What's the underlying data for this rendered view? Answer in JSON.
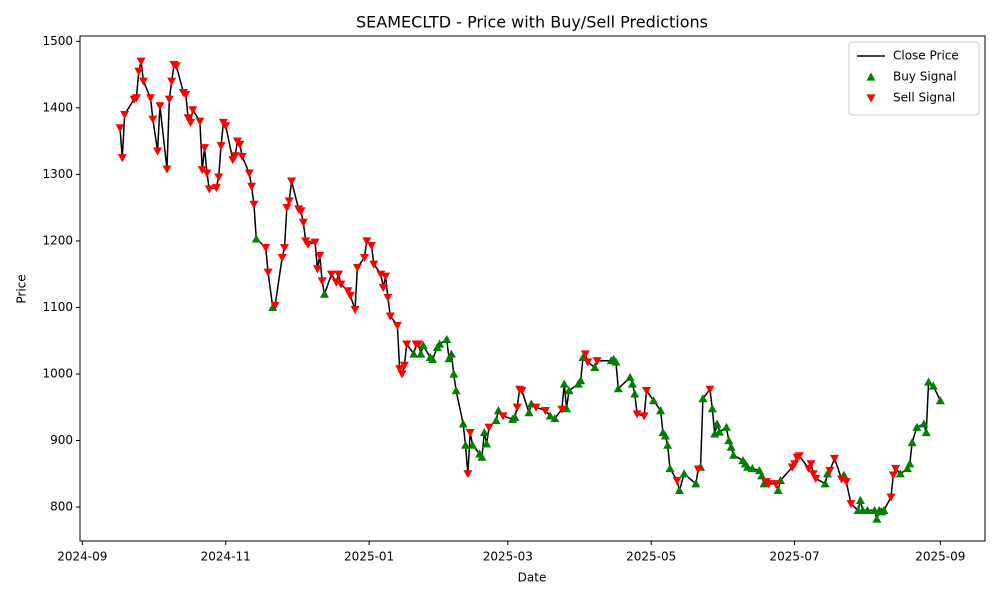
{
  "chart_data": {
    "type": "line",
    "title": "SEAMECLTD - Price with Buy/Sell Predictions",
    "x_label": "Date",
    "y_label": "Price",
    "xlim": [
      "2024-08-31",
      "2025-09-20"
    ],
    "xticks": [
      {
        "value": "2024-09-01",
        "label": "2024-09"
      },
      {
        "value": "2024-11-01",
        "label": "2024-11"
      },
      {
        "value": "2025-01-01",
        "label": "2025-01"
      },
      {
        "value": "2025-03-01",
        "label": "2025-03"
      },
      {
        "value": "2025-05-01",
        "label": "2025-05"
      },
      {
        "value": "2025-07-01",
        "label": "2025-07"
      },
      {
        "value": "2025-09-01",
        "label": "2025-09"
      }
    ],
    "ylim": [
      749,
      1508
    ],
    "yticks": [
      800,
      900,
      1000,
      1100,
      1200,
      1300,
      1400,
      1500
    ],
    "grid": false,
    "legend": "upper right",
    "series": [
      {
        "name": "Close Price",
        "type": "line",
        "color": "#000000",
        "x": [
          "2024-09-17",
          "2024-09-18",
          "2024-09-19",
          "2024-09-23",
          "2024-09-24",
          "2024-09-25",
          "2024-09-26",
          "2024-09-27",
          "2024-09-30",
          "2024-10-01",
          "2024-10-03",
          "2024-10-04",
          "2024-10-07",
          "2024-10-08",
          "2024-10-09",
          "2024-10-10",
          "2024-10-11",
          "2024-10-14",
          "2024-10-15",
          "2024-10-16",
          "2024-10-17",
          "2024-10-18",
          "2024-10-21",
          "2024-10-22",
          "2024-10-23",
          "2024-10-24",
          "2024-10-25",
          "2024-10-28",
          "2024-10-29",
          "2024-10-30",
          "2024-10-31",
          "2024-11-01",
          "2024-11-04",
          "2024-11-05",
          "2024-11-06",
          "2024-11-07",
          "2024-11-08",
          "2024-11-11",
          "2024-11-12",
          "2024-11-13",
          "2024-11-14",
          "2024-11-18",
          "2024-11-19",
          "2024-11-21",
          "2024-11-22",
          "2024-11-25",
          "2024-11-26",
          "2024-11-27",
          "2024-11-28",
          "2024-11-29",
          "2024-12-02",
          "2024-12-03",
          "2024-12-04",
          "2024-12-05",
          "2024-12-06",
          "2024-12-09",
          "2024-12-10",
          "2024-12-11",
          "2024-12-12",
          "2024-12-13",
          "2024-12-16",
          "2024-12-18",
          "2024-12-19",
          "2024-12-20",
          "2024-12-23",
          "2024-12-24",
          "2024-12-26",
          "2024-12-27",
          "2024-12-30",
          "2024-12-31",
          "2025-01-02",
          "2025-01-03",
          "2025-01-06",
          "2025-01-07",
          "2025-01-08",
          "2025-01-09",
          "2025-01-10",
          "2025-01-13",
          "2025-01-14",
          "2025-01-15",
          "2025-01-16",
          "2025-01-17",
          "2025-01-20",
          "2025-01-21",
          "2025-01-22",
          "2025-01-23",
          "2025-01-24",
          "2025-01-27",
          "2025-01-28",
          "2025-01-30",
          "2025-01-31",
          "2025-02-03",
          "2025-02-04",
          "2025-02-05",
          "2025-02-06",
          "2025-02-07",
          "2025-02-10",
          "2025-02-11",
          "2025-02-12",
          "2025-02-13",
          "2025-02-14",
          "2025-02-17",
          "2025-02-18",
          "2025-02-19",
          "2025-02-20",
          "2025-02-21",
          "2025-02-24",
          "2025-02-25",
          "2025-02-27",
          "2025-03-03",
          "2025-03-04",
          "2025-03-05",
          "2025-03-06",
          "2025-03-07",
          "2025-03-10",
          "2025-03-11",
          "2025-03-13",
          "2025-03-17",
          "2025-03-19",
          "2025-03-21",
          "2025-03-24",
          "2025-03-25",
          "2025-03-26",
          "2025-03-27",
          "2025-03-31",
          "2025-04-01",
          "2025-04-02",
          "2025-04-03",
          "2025-04-04",
          "2025-04-07",
          "2025-04-08",
          "2025-04-14",
          "2025-04-15",
          "2025-04-16",
          "2025-04-17",
          "2025-04-22",
          "2025-04-23",
          "2025-04-24",
          "2025-04-25",
          "2025-04-28",
          "2025-04-29",
          "2025-05-02",
          "2025-05-05",
          "2025-05-06",
          "2025-05-07",
          "2025-05-08",
          "2025-05-09",
          "2025-05-12",
          "2025-05-13",
          "2025-05-15",
          "2025-05-20",
          "2025-05-21",
          "2025-05-22",
          "2025-05-23",
          "2025-05-26",
          "2025-05-27",
          "2025-05-28",
          "2025-05-29",
          "2025-05-30",
          "2025-06-02",
          "2025-06-03",
          "2025-06-04",
          "2025-06-05",
          "2025-06-09",
          "2025-06-10",
          "2025-06-11",
          "2025-06-13",
          "2025-06-16",
          "2025-06-17",
          "2025-06-18",
          "2025-06-19",
          "2025-06-20",
          "2025-06-23",
          "2025-06-24",
          "2025-06-25",
          "2025-06-30",
          "2025-07-01",
          "2025-07-02",
          "2025-07-03",
          "2025-07-07",
          "2025-07-08",
          "2025-07-09",
          "2025-07-10",
          "2025-07-14",
          "2025-07-15",
          "2025-07-16",
          "2025-07-18",
          "2025-07-21",
          "2025-07-22",
          "2025-07-23",
          "2025-07-25",
          "2025-07-28",
          "2025-07-29",
          "2025-07-30",
          "2025-08-01",
          "2025-08-04",
          "2025-08-05",
          "2025-08-06",
          "2025-08-07",
          "2025-08-08",
          "2025-08-11",
          "2025-08-12",
          "2025-08-13",
          "2025-08-15",
          "2025-08-18",
          "2025-08-19",
          "2025-08-20",
          "2025-08-22",
          "2025-08-25",
          "2025-08-26",
          "2025-08-27",
          "2025-08-29",
          "2025-09-01"
        ],
        "values": [
          1370,
          1325,
          1390,
          1413,
          1415,
          1455,
          1470,
          1440,
          1415,
          1383,
          1335,
          1403,
          1308,
          1413,
          1440,
          1465,
          1463,
          1423,
          1420,
          1385,
          1378,
          1397,
          1380,
          1307,
          1340,
          1302,
          1278,
          1280,
          1296,
          1343,
          1378,
          1373,
          1322,
          1328,
          1350,
          1345,
          1327,
          1302,
          1282,
          1255,
          1203,
          1190,
          1153,
          1100,
          1103,
          1175,
          1190,
          1250,
          1260,
          1290,
          1248,
          1245,
          1228,
          1200,
          1195,
          1198,
          1158,
          1178,
          1140,
          1120,
          1150,
          1138,
          1150,
          1135,
          1125,
          1118,
          1097,
          1160,
          1175,
          1200,
          1193,
          1165,
          1150,
          1130,
          1147,
          1115,
          1087,
          1073,
          1008,
          1000,
          1013,
          1045,
          1030,
          1045,
          1045,
          1030,
          1043,
          1025,
          1022,
          1040,
          1045,
          1052,
          1023,
          1030,
          1000,
          975,
          925,
          893,
          850,
          912,
          893,
          880,
          875,
          912,
          895,
          920,
          930,
          945,
          937,
          932,
          935,
          950,
          977,
          975,
          942,
          955,
          950,
          945,
          937,
          933,
          947,
          985,
          948,
          975,
          985,
          990,
          1025,
          1030,
          1018,
          1010,
          1020,
          1020,
          1022,
          1018,
          978,
          995,
          985,
          970,
          940,
          937,
          975,
          960,
          945,
          912,
          907,
          893,
          858,
          840,
          825,
          850,
          835,
          857,
          860,
          963,
          977,
          948,
          910,
          925,
          913,
          920,
          900,
          890,
          878,
          870,
          865,
          860,
          858,
          855,
          847,
          835,
          838,
          835,
          835,
          825,
          840,
          860,
          865,
          875,
          877,
          858,
          865,
          850,
          843,
          835,
          850,
          855,
          873,
          842,
          848,
          838,
          805,
          795,
          810,
          795,
          795,
          795,
          782,
          795,
          793,
          795,
          815,
          848,
          858,
          850,
          858,
          865,
          897,
          920,
          925,
          912,
          988,
          982,
          960
        ]
      },
      {
        "name": "Buy Signal",
        "type": "scatter",
        "marker": "triangle-up",
        "color": "#008000",
        "x": [
          "2024-11-14",
          "2024-11-21",
          "2024-12-13",
          "2025-01-20",
          "2025-01-23",
          "2025-01-24",
          "2025-01-27",
          "2025-01-28",
          "2025-01-30",
          "2025-01-31",
          "2025-02-03",
          "2025-02-04",
          "2025-02-05",
          "2025-02-06",
          "2025-02-07",
          "2025-02-10",
          "2025-02-11",
          "2025-02-14",
          "2025-02-17",
          "2025-02-18",
          "2025-02-19",
          "2025-02-20",
          "2025-02-24",
          "2025-02-25",
          "2025-03-03",
          "2025-03-04",
          "2025-03-10",
          "2025-03-11",
          "2025-03-19",
          "2025-03-21",
          "2025-03-25",
          "2025-03-26",
          "2025-03-27",
          "2025-03-31",
          "2025-04-01",
          "2025-04-02",
          "2025-04-07",
          "2025-04-14",
          "2025-04-15",
          "2025-04-16",
          "2025-04-17",
          "2025-04-22",
          "2025-04-23",
          "2025-04-24",
          "2025-05-02",
          "2025-05-05",
          "2025-05-06",
          "2025-05-07",
          "2025-05-08",
          "2025-05-09",
          "2025-05-13",
          "2025-05-15",
          "2025-05-20",
          "2025-05-22",
          "2025-05-23",
          "2025-05-27",
          "2025-05-28",
          "2025-05-29",
          "2025-05-30",
          "2025-06-02",
          "2025-06-03",
          "2025-06-04",
          "2025-06-05",
          "2025-06-09",
          "2025-06-10",
          "2025-06-11",
          "2025-06-13",
          "2025-06-16",
          "2025-06-17",
          "2025-06-18",
          "2025-06-24",
          "2025-06-25",
          "2025-07-14",
          "2025-07-15",
          "2025-07-22",
          "2025-07-28",
          "2025-07-29",
          "2025-07-30",
          "2025-08-01",
          "2025-08-04",
          "2025-08-05",
          "2025-08-06",
          "2025-08-07",
          "2025-08-08",
          "2025-08-15",
          "2025-08-18",
          "2025-08-19",
          "2025-08-20",
          "2025-08-22",
          "2025-08-25",
          "2025-08-26",
          "2025-08-27",
          "2025-08-29",
          "2025-09-01"
        ],
        "values": [
          1203,
          1100,
          1120,
          1030,
          1030,
          1043,
          1025,
          1022,
          1040,
          1045,
          1052,
          1023,
          1030,
          1000,
          975,
          925,
          893,
          893,
          880,
          875,
          912,
          895,
          930,
          945,
          932,
          935,
          942,
          955,
          937,
          933,
          985,
          948,
          975,
          985,
          990,
          1025,
          1010,
          1020,
          1022,
          1018,
          978,
          995,
          985,
          970,
          960,
          945,
          912,
          907,
          893,
          858,
          825,
          850,
          835,
          860,
          963,
          948,
          910,
          925,
          913,
          920,
          900,
          890,
          878,
          870,
          865,
          860,
          858,
          855,
          847,
          835,
          825,
          840,
          835,
          850,
          848,
          795,
          810,
          795,
          795,
          795,
          782,
          795,
          793,
          795,
          850,
          858,
          865,
          897,
          920,
          925,
          912,
          988,
          982,
          960
        ]
      },
      {
        "name": "Sell Signal",
        "type": "scatter",
        "marker": "triangle-down",
        "color": "#ff0000",
        "x": [
          "2024-09-17",
          "2024-09-18",
          "2024-09-19",
          "2024-09-23",
          "2024-09-24",
          "2024-09-25",
          "2024-09-26",
          "2024-09-27",
          "2024-09-30",
          "2024-10-01",
          "2024-10-03",
          "2024-10-04",
          "2024-10-07",
          "2024-10-08",
          "2024-10-09",
          "2024-10-10",
          "2024-10-11",
          "2024-10-14",
          "2024-10-15",
          "2024-10-16",
          "2024-10-17",
          "2024-10-18",
          "2024-10-21",
          "2024-10-22",
          "2024-10-23",
          "2024-10-24",
          "2024-10-25",
          "2024-10-28",
          "2024-10-29",
          "2024-10-30",
          "2024-10-31",
          "2024-11-01",
          "2024-11-04",
          "2024-11-05",
          "2024-11-06",
          "2024-11-07",
          "2024-11-08",
          "2024-11-11",
          "2024-11-12",
          "2024-11-13",
          "2024-11-18",
          "2024-11-19",
          "2024-11-22",
          "2024-11-25",
          "2024-11-26",
          "2024-11-27",
          "2024-11-28",
          "2024-11-29",
          "2024-12-02",
          "2024-12-03",
          "2024-12-04",
          "2024-12-05",
          "2024-12-06",
          "2024-12-09",
          "2024-12-10",
          "2024-12-11",
          "2024-12-12",
          "2024-12-16",
          "2024-12-18",
          "2024-12-19",
          "2024-12-20",
          "2024-12-23",
          "2024-12-24",
          "2024-12-26",
          "2024-12-27",
          "2024-12-30",
          "2024-12-31",
          "2025-01-02",
          "2025-01-03",
          "2025-01-06",
          "2025-01-07",
          "2025-01-08",
          "2025-01-09",
          "2025-01-10",
          "2025-01-13",
          "2025-01-14",
          "2025-01-15",
          "2025-01-16",
          "2025-01-17",
          "2025-01-21",
          "2025-01-22",
          "2025-02-12",
          "2025-02-13",
          "2025-02-21",
          "2025-02-27",
          "2025-03-05",
          "2025-03-06",
          "2025-03-07",
          "2025-03-13",
          "2025-03-17",
          "2025-03-24",
          "2025-04-03",
          "2025-04-04",
          "2025-04-08",
          "2025-04-25",
          "2025-04-28",
          "2025-04-29",
          "2025-05-12",
          "2025-05-21",
          "2025-05-26",
          "2025-06-19",
          "2025-06-20",
          "2025-06-23",
          "2025-06-30",
          "2025-07-01",
          "2025-07-02",
          "2025-07-03",
          "2025-07-07",
          "2025-07-08",
          "2025-07-09",
          "2025-07-10",
          "2025-07-16",
          "2025-07-18",
          "2025-07-21",
          "2025-07-23",
          "2025-07-25",
          "2025-08-11",
          "2025-08-12",
          "2025-08-13"
        ],
        "values": [
          1370,
          1325,
          1390,
          1413,
          1415,
          1455,
          1470,
          1440,
          1415,
          1383,
          1335,
          1403,
          1308,
          1413,
          1440,
          1465,
          1463,
          1423,
          1420,
          1385,
          1378,
          1397,
          1380,
          1307,
          1340,
          1302,
          1278,
          1280,
          1296,
          1343,
          1378,
          1373,
          1322,
          1328,
          1350,
          1345,
          1327,
          1302,
          1282,
          1255,
          1190,
          1153,
          1103,
          1175,
          1190,
          1250,
          1260,
          1290,
          1248,
          1245,
          1228,
          1200,
          1195,
          1198,
          1158,
          1178,
          1140,
          1150,
          1138,
          1150,
          1135,
          1125,
          1118,
          1097,
          1160,
          1175,
          1200,
          1193,
          1165,
          1150,
          1130,
          1147,
          1115,
          1087,
          1073,
          1008,
          1000,
          1013,
          1045,
          1045,
          1045,
          850,
          912,
          920,
          937,
          950,
          977,
          975,
          950,
          945,
          947,
          1030,
          1018,
          1020,
          940,
          937,
          975,
          840,
          857,
          977,
          838,
          835,
          835,
          860,
          865,
          875,
          877,
          858,
          865,
          850,
          843,
          855,
          873,
          842,
          838,
          805,
          815,
          848,
          858
        ]
      }
    ]
  }
}
